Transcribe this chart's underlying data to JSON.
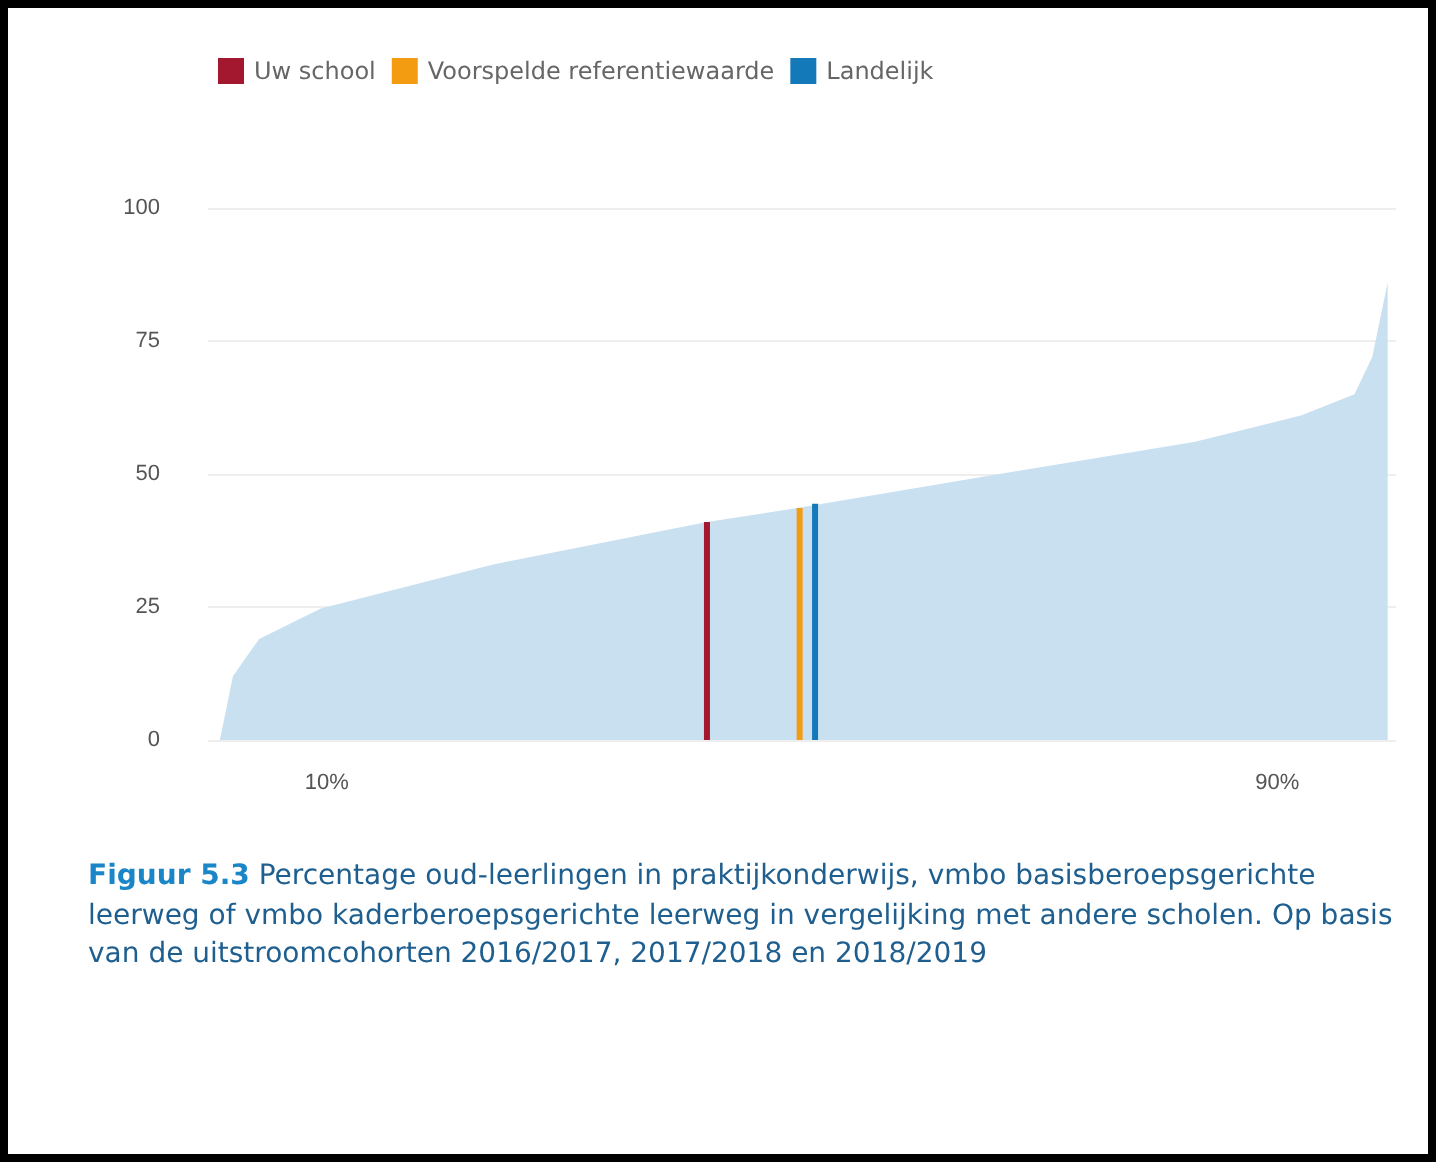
{
  "chart_data": {
    "type": "area",
    "annotations": [
      "Figuur 5.3 Percentage oud-leerlingen in praktijkonderwijs, vmbo basisberoepsgerichte leerweg of vmbo kaderberoepsgerichte leerweg in vergelijking met andere scholen. Op basis van de uitstroomcohorten 2016/2017, 2017/2018 en 2018/2019"
    ],
    "xlim": [
      0,
      100
    ],
    "xticks": [
      {
        "value": 10,
        "label": "10%"
      },
      {
        "value": 90,
        "label": "90%"
      }
    ],
    "ylim": [
      0,
      100
    ],
    "yticks": [
      0,
      25,
      50,
      75,
      100
    ],
    "grid": "y",
    "legend": "top left",
    "series": [
      {
        "color": "#c9e0f1",
        "x": [
          1,
          2.1,
          4.3,
          9.5,
          24,
          42,
          49.6,
          68,
          83,
          92,
          96.5,
          98,
          99.3
        ],
        "values": [
          0,
          12,
          19,
          24.7,
          33,
          41,
          43.6,
          50.5,
          56,
          61,
          65,
          72,
          86
        ]
      },
      {
        "type": "bar",
        "name": "Uw school",
        "color": "#a3182f",
        "x": [
          42
        ],
        "values": [
          41
        ]
      },
      {
        "type": "bar",
        "name": "Voorspelde referentiewaarde",
        "color": "#f39c12",
        "x": [
          49.8
        ],
        "values": [
          43.6
        ]
      },
      {
        "type": "bar",
        "name": "Landelijk",
        "color": "#1479b8",
        "x": [
          51.1
        ],
        "values": [
          44.4
        ]
      }
    ]
  }
}
